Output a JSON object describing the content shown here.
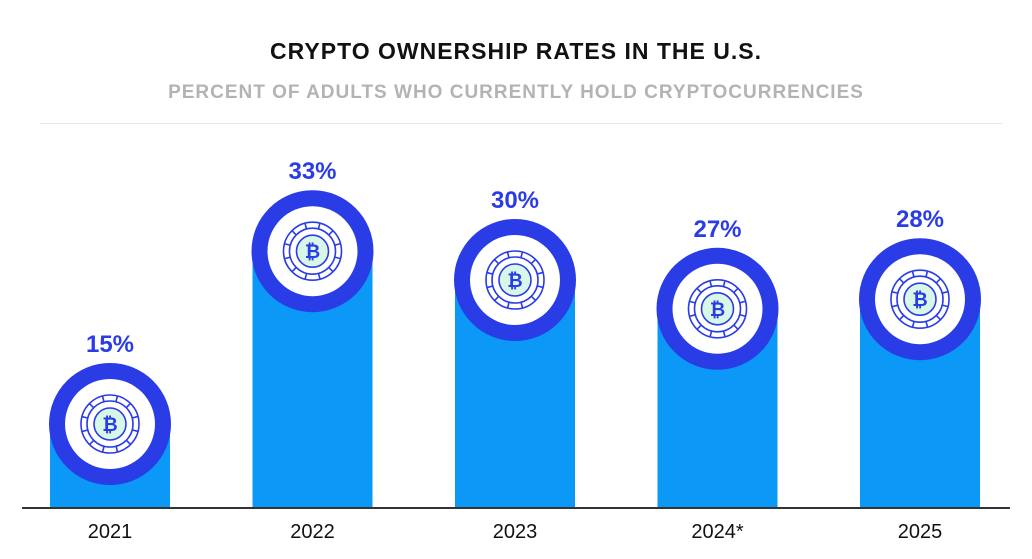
{
  "chart_data": {
    "type": "bar",
    "title": "CRYPTO OWNERSHIP RATES IN THE U.S.",
    "subtitle": "PERCENT OF ADULTS WHO CURRENTLY HOLD CRYPTOCURRENCIES",
    "categories": [
      "2021",
      "2022",
      "2023",
      "2024*",
      "2025"
    ],
    "values": [
      15,
      33,
      30,
      27,
      28
    ],
    "data_labels": [
      "15%",
      "33%",
      "30%",
      "27%",
      "28%"
    ],
    "unit": "%",
    "grid": false,
    "legend": "none",
    "icon": "bitcoin-coin-icon",
    "colors": {
      "bar": "#0b98f6",
      "ring": "#2a3ce6",
      "label": "#2a3ce6",
      "coin_fill": "#d8f7e6",
      "axis": "#333333"
    }
  }
}
